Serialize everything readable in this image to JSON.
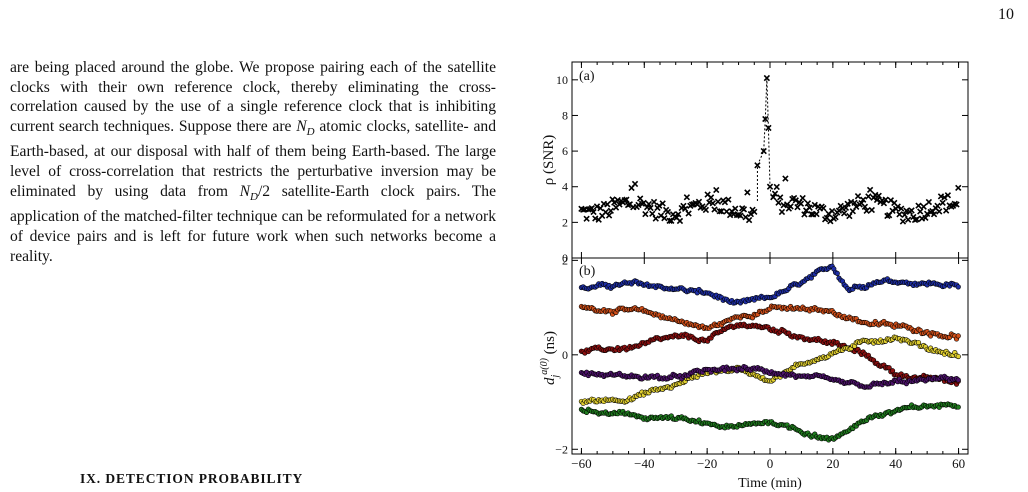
{
  "page": {
    "number": "10"
  },
  "body": {
    "p1": "are being placed around the globe. We propose pairing each of the satellite clocks with their own reference clock, thereby eliminating the cross-correlation caused by the use of a single reference clock that is inhibiting current search techniques. Suppose there are ",
    "nd1": "N",
    "nd1_sub": "D",
    "p2": " atomic clocks, satellite- and Earth-based, at our disposal with half of them being Earth-based. The large level of cross-correlation that restricts the perturbative inversion may be eliminated by using data from ",
    "nd2": "N",
    "nd2_sub": "D",
    "nd2_tail": "/2",
    "p3": " satellite-Earth clock pairs. The application of the matched-filter technique can be reformulated for a network of device pairs and is left for future work when such networks become a reality."
  },
  "section": {
    "heading": "IX.   DETECTION PROBABILITY"
  },
  "chart_data": [
    {
      "type": "scatter",
      "panel_label": "(a)",
      "ylabel": "ρ (SNR)",
      "ylim": [
        0,
        11
      ],
      "yticks": [
        "0",
        "2",
        "4",
        "6",
        "8",
        "10"
      ],
      "xlim": [
        -63,
        63
      ],
      "marker": "x",
      "color": "#000000",
      "spike": {
        "x": [
          -4,
          -2,
          -1.5,
          -1,
          -0.5,
          0
        ],
        "y": [
          5.2,
          6,
          7.8,
          10.1,
          7.3,
          4
        ]
      },
      "baseline_mean": 2.8
    },
    {
      "type": "scatter",
      "panel_label": "(b)",
      "ylabel": "d_j^a(0) (ns)",
      "ylim": [
        -2.1,
        2.05
      ],
      "yticks": [
        "−2",
        "0",
        "2"
      ],
      "xlabel": "Time (min)",
      "xlim": [
        -63,
        63
      ],
      "xticks": [
        "−60",
        "−40",
        "−20",
        "0",
        "20",
        "40",
        "60"
      ],
      "marker": "o",
      "series": [
        {
          "color": "#1f2fa6",
          "x": [
            -60,
            -45,
            -30,
            -20,
            -10,
            0,
            10,
            20,
            25,
            35,
            45,
            55,
            60
          ],
          "y": [
            1.4,
            1.5,
            1.4,
            1.3,
            1.05,
            1.2,
            1.5,
            1.85,
            1.4,
            1.6,
            1.55,
            1.5,
            1.45
          ]
        },
        {
          "color": "#d2501a",
          "x": [
            -60,
            -45,
            -30,
            -20,
            -10,
            0,
            10,
            20,
            30,
            40,
            50,
            60
          ],
          "y": [
            1.0,
            0.95,
            0.75,
            0.55,
            0.8,
            1.0,
            0.95,
            0.9,
            0.7,
            0.6,
            0.5,
            0.4
          ]
        },
        {
          "color": "#8b1010",
          "x": [
            -60,
            -45,
            -30,
            -20,
            -10,
            0,
            10,
            20,
            30,
            40,
            50,
            60
          ],
          "y": [
            0.05,
            0.15,
            0.35,
            0.3,
            0.65,
            0.55,
            0.4,
            0.25,
            0.0,
            -0.4,
            -0.5,
            -0.6
          ]
        },
        {
          "color": "#e2d030",
          "x": [
            -60,
            -45,
            -30,
            -20,
            -10,
            0,
            10,
            20,
            30,
            40,
            50,
            60
          ],
          "y": [
            -1.0,
            -0.9,
            -0.65,
            -0.35,
            -0.3,
            -0.5,
            -0.2,
            0.05,
            0.25,
            0.4,
            0.15,
            0.0
          ]
        },
        {
          "color": "#4d136b",
          "x": [
            -60,
            -45,
            -30,
            -20,
            -10,
            0,
            10,
            20,
            30,
            40,
            50,
            60
          ],
          "y": [
            -0.4,
            -0.45,
            -0.5,
            -0.35,
            -0.3,
            -0.35,
            -0.45,
            -0.6,
            -0.7,
            -0.6,
            -0.55,
            -0.5
          ]
        },
        {
          "color": "#207d1f",
          "x": [
            -60,
            -45,
            -30,
            -20,
            -10,
            0,
            10,
            20,
            30,
            40,
            50,
            60
          ],
          "y": [
            -1.2,
            -1.3,
            -1.35,
            -1.5,
            -1.55,
            -1.4,
            -1.6,
            -1.8,
            -1.35,
            -1.2,
            -1.1,
            -1.05
          ]
        }
      ]
    }
  ]
}
